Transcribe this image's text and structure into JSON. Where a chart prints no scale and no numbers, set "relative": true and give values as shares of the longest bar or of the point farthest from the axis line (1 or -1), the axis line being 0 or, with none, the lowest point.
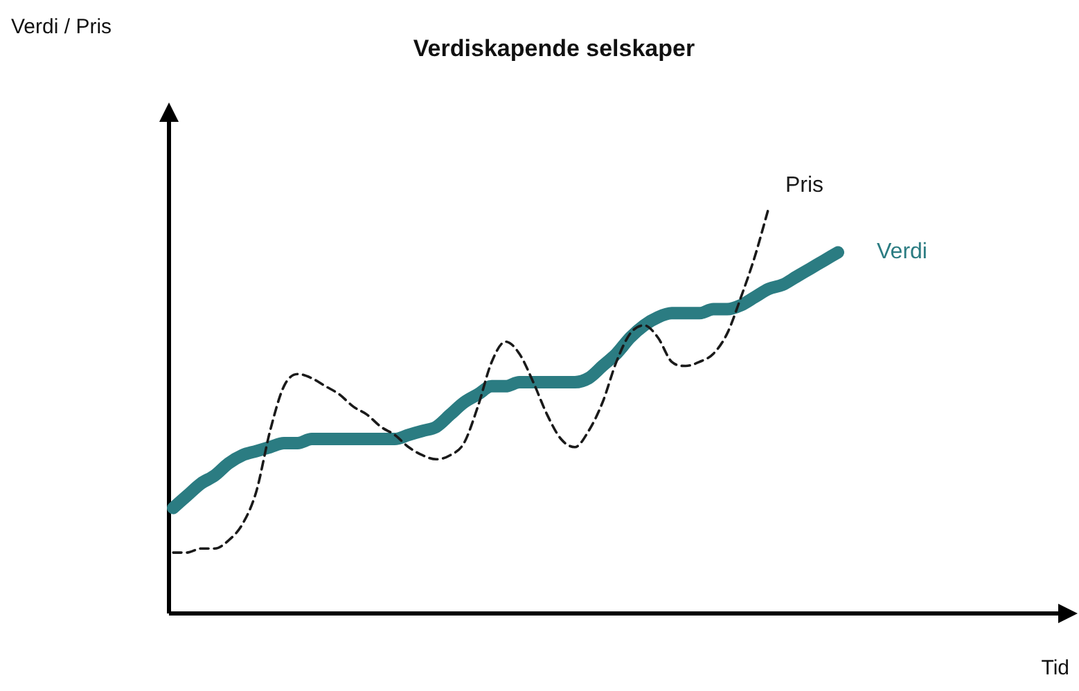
{
  "chart_data": {
    "type": "line",
    "relative": true,
    "title": "Verdiskapende selskaper",
    "annotations": [
      "Verdi / Pris",
      "Tid"
    ],
    "categories": [
      null,
      null,
      null,
      null,
      null,
      null,
      null,
      null,
      null,
      null,
      null,
      null,
      null,
      null,
      null,
      null,
      null,
      null,
      null,
      null,
      null,
      null,
      null,
      null,
      null,
      null,
      null,
      null,
      null,
      null,
      null,
      null,
      null,
      null,
      null,
      null,
      null,
      null,
      null,
      null,
      null,
      null,
      null,
      null,
      null,
      null,
      null,
      null,
      null
    ],
    "series": [
      {
        "name": "Pris",
        "color": "#1a1a1a",
        "line_style": "dashed",
        "values": [
          0.15,
          0.15,
          0.16,
          0.16,
          0.18,
          0.22,
          0.3,
          0.45,
          0.56,
          0.59,
          0.58,
          0.56,
          0.54,
          0.51,
          0.49,
          0.46,
          0.44,
          0.41,
          0.39,
          0.38,
          0.39,
          0.42,
          0.51,
          0.62,
          0.67,
          0.64,
          0.57,
          0.49,
          0.43,
          0.41,
          0.45,
          0.52,
          0.62,
          0.69,
          0.71,
          0.68,
          0.62,
          0.61,
          0.62,
          0.64,
          0.69,
          0.78,
          0.88,
          1,
          null,
          null,
          null,
          null,
          null
        ]
      },
      {
        "name": "Verdi",
        "color": "#2b7c82",
        "line_style": "solid",
        "values": [
          0.26,
          0.29,
          0.32,
          0.34,
          0.37,
          0.39,
          0.4,
          0.41,
          0.42,
          0.42,
          0.43,
          0.43,
          0.43,
          0.43,
          0.43,
          0.43,
          0.43,
          0.44,
          0.45,
          0.46,
          0.49,
          0.52,
          0.54,
          0.56,
          0.56,
          0.57,
          0.57,
          0.57,
          0.57,
          0.57,
          0.58,
          0.61,
          0.64,
          0.68,
          0.71,
          0.73,
          0.74,
          0.74,
          0.74,
          0.75,
          0.75,
          0.76,
          0.78,
          0.8,
          0.81,
          0.83,
          0.85,
          0.87,
          0.89
        ]
      }
    ]
  }
}
